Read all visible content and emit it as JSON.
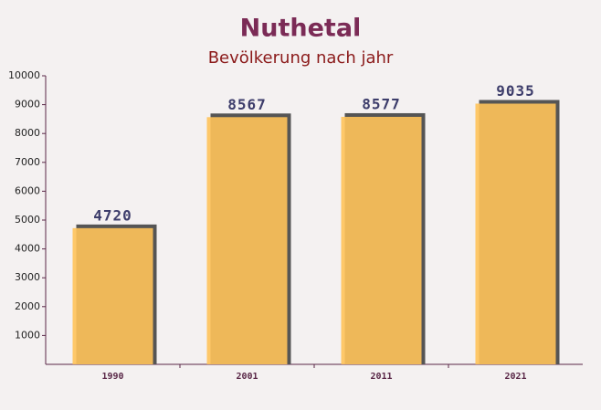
{
  "chart_data": {
    "type": "bar",
    "title": "Nuthetal",
    "subtitle": "Bevölkerung nach jahr",
    "categories": [
      "1990",
      "2001",
      "2011",
      "2021"
    ],
    "values": [
      4720,
      8567,
      8577,
      9035
    ],
    "color": "#ffc35a",
    "ylim": [
      0,
      10000
    ],
    "yticks": [
      1000,
      2000,
      3000,
      4000,
      5000,
      6000,
      7000,
      8000,
      9000,
      10000
    ]
  }
}
